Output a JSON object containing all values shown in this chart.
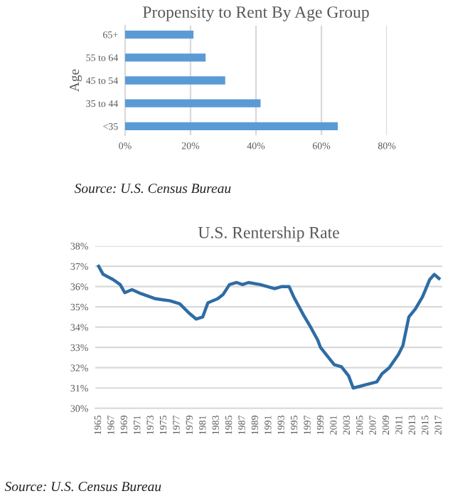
{
  "chart_data": [
    {
      "type": "bar",
      "title": "Propensity to Rent By Age Group",
      "ylabel": "Age",
      "orientation": "horizontal",
      "categories": [
        "65+",
        "55 to 64",
        "45 to 54",
        "35 to 44",
        "<35"
      ],
      "values": [
        20.9,
        24.6,
        30.6,
        41.4,
        65.0
      ],
      "color": "#5b9bd5",
      "xlim": [
        0,
        80
      ],
      "xticks": [
        {
          "value": 0,
          "label": "0%"
        },
        {
          "value": 20,
          "label": "20%"
        },
        {
          "value": 40,
          "label": "40%"
        },
        {
          "value": 60,
          "label": "60%"
        },
        {
          "value": 80,
          "label": "80%"
        }
      ],
      "grid": "x",
      "annotations": [
        "Source: U.S. Census Bureau"
      ]
    },
    {
      "type": "line",
      "title": "U.S. Rentership Rate",
      "series": [
        {
          "color": "#2e6ca4",
          "x": [
            1965,
            1965.7,
            1967.2,
            1968.3,
            1969,
            1970.1,
            1971.5,
            1973.7,
            1974.8,
            1975.9,
            1977.4,
            1978.8,
            1979.9,
            1980.9,
            1981.7,
            1983.2,
            1984,
            1985,
            1986.1,
            1987,
            1987.9,
            1989.7,
            1991.9,
            1993,
            1994.1,
            1994.8,
            1996.3,
            1997.4,
            1998.5,
            1998.9,
            2001,
            2002.1,
            2003.2,
            2003.9,
            2005.7,
            2007.5,
            2008.3,
            2009.4,
            2010.8,
            2011.5,
            2012.4,
            2013.4,
            2014.5,
            2015.6,
            2016.3,
            2017
          ],
          "values": [
            37.0,
            36.6,
            36.35,
            36.1,
            35.7,
            35.85,
            35.65,
            35.4,
            35.35,
            35.3,
            35.15,
            34.7,
            34.4,
            34.5,
            35.2,
            35.4,
            35.6,
            36.1,
            36.2,
            36.1,
            36.2,
            36.1,
            35.9,
            36.0,
            36.0,
            35.5,
            34.6,
            34.0,
            33.35,
            33.0,
            32.15,
            32.05,
            31.6,
            31.0,
            31.15,
            31.3,
            31.7,
            32.0,
            32.65,
            33.1,
            34.5,
            34.9,
            35.5,
            36.35,
            36.6,
            36.4
          ]
        }
      ],
      "xlim": [
        1964.5,
        2017.5
      ],
      "xticks": [
        1965,
        1967,
        1969,
        1971,
        1973,
        1975,
        1977,
        1979,
        1981,
        1983,
        1985,
        1987,
        1989,
        1991,
        1993,
        1995,
        1997,
        1999,
        2001,
        2003,
        2005,
        2007,
        2009,
        2011,
        2013,
        2015,
        2017
      ],
      "ylim": [
        30,
        38
      ],
      "yticks": [
        {
          "value": 30,
          "label": "30%"
        },
        {
          "value": 31,
          "label": "31%"
        },
        {
          "value": 32,
          "label": "32%"
        },
        {
          "value": 33,
          "label": "33%"
        },
        {
          "value": 34,
          "label": "34%"
        },
        {
          "value": 35,
          "label": "35%"
        },
        {
          "value": 36,
          "label": "36%"
        },
        {
          "value": 37,
          "label": "37%"
        },
        {
          "value": 38,
          "label": "38%"
        }
      ],
      "grid": "y",
      "annotations": [
        "Source: U.S. Census Bureau"
      ]
    }
  ]
}
